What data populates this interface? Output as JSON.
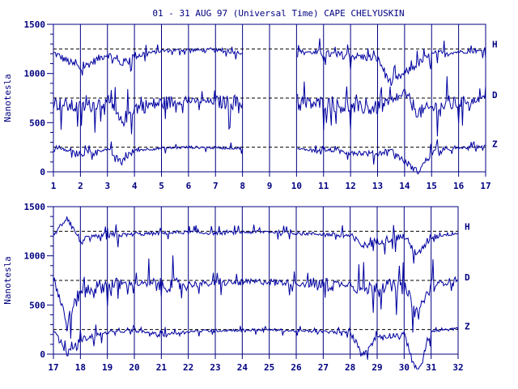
{
  "title": "01 - 31 AUG 97 (Universal Time) CAPE CHELYUSKIN",
  "colors": {
    "trace": "#0000a0",
    "axis": "#000080",
    "text": "#000080",
    "background": "#ffffff"
  },
  "chart_data": [
    {
      "type": "line",
      "title": "01 - 31 AUG 97 (Universal Time) CAPE CHELYUSKIN",
      "ylabel": "Nanotesla",
      "xlabel": "",
      "x_ticks": [
        "1",
        "2",
        "3",
        "4",
        "5",
        "6",
        "7",
        "8",
        "9",
        "10",
        "11",
        "12",
        "13",
        "14",
        "15",
        "16",
        "17"
      ],
      "xlim": [
        1,
        17
      ],
      "ylim": [
        0,
        1500
      ],
      "y_ticks": [
        "0",
        "500",
        "1000",
        "1500"
      ],
      "grid": true,
      "baselines": [
        1250,
        750,
        250
      ],
      "series": [
        {
          "name": "H",
          "baseline": 1250,
          "x": [
            1,
            2,
            3,
            3.5,
            4,
            5,
            6,
            7,
            8,
            9,
            10,
            11,
            12,
            13,
            13.5,
            14,
            14.5,
            15,
            16,
            17
          ],
          "values": [
            1210,
            1050,
            1200,
            1100,
            1180,
            1230,
            1240,
            1235,
            1210,
            null,
            1230,
            1200,
            1180,
            1150,
            900,
            1000,
            1100,
            1190,
            1220,
            1230
          ]
        },
        {
          "name": "D",
          "baseline": 750,
          "x": [
            1,
            2,
            3,
            3.5,
            4,
            5,
            6,
            7,
            8,
            9,
            10,
            11,
            12,
            13,
            13.5,
            14,
            14.5,
            15,
            16,
            17
          ],
          "values": [
            700,
            650,
            720,
            500,
            650,
            700,
            720,
            710,
            700,
            null,
            680,
            700,
            650,
            650,
            700,
            800,
            600,
            650,
            700,
            750
          ]
        },
        {
          "name": "Z",
          "baseline": 250,
          "x": [
            1,
            2,
            3,
            3.5,
            4,
            5,
            6,
            7,
            8,
            9,
            10,
            11,
            12,
            13,
            13.5,
            14,
            14.5,
            15,
            16,
            17
          ],
          "values": [
            250,
            180,
            230,
            100,
            220,
            240,
            250,
            245,
            240,
            null,
            230,
            220,
            200,
            180,
            230,
            100,
            0,
            200,
            240,
            260
          ]
        }
      ]
    },
    {
      "type": "line",
      "ylabel": "Nanotesla",
      "xlabel": "",
      "x_ticks": [
        "17",
        "18",
        "19",
        "20",
        "21",
        "22",
        "23",
        "24",
        "25",
        "26",
        "27",
        "28",
        "29",
        "30",
        "31",
        "32"
      ],
      "xlim": [
        17,
        32
      ],
      "ylim": [
        0,
        1500
      ],
      "y_ticks": [
        "0",
        "500",
        "1000",
        "1500"
      ],
      "grid": true,
      "baselines": [
        1250,
        750,
        250
      ],
      "series": [
        {
          "name": "H",
          "baseline": 1250,
          "x": [
            17,
            17.5,
            18,
            19,
            20,
            21,
            22,
            23,
            24,
            25,
            26,
            27,
            28,
            28.5,
            29,
            30,
            30.5,
            31,
            32
          ],
          "values": [
            1200,
            1400,
            1150,
            1200,
            1220,
            1230,
            1240,
            1230,
            1240,
            1245,
            1230,
            1220,
            1200,
            1100,
            1150,
            1200,
            1000,
            1200,
            1230
          ]
        },
        {
          "name": "D",
          "baseline": 750,
          "x": [
            17,
            17.5,
            18,
            19,
            20,
            21,
            22,
            23,
            24,
            25,
            26,
            27,
            28,
            28.5,
            29,
            30,
            30.5,
            31,
            32
          ],
          "values": [
            800,
            300,
            650,
            700,
            720,
            700,
            710,
            720,
            730,
            740,
            720,
            700,
            720,
            650,
            700,
            680,
            400,
            700,
            760
          ]
        },
        {
          "name": "Z",
          "baseline": 250,
          "x": [
            17,
            17.5,
            18,
            19,
            20,
            21,
            22,
            23,
            24,
            25,
            26,
            27,
            28,
            28.5,
            29,
            30,
            30.5,
            31,
            32
          ],
          "values": [
            250,
            0,
            150,
            220,
            240,
            200,
            230,
            240,
            245,
            250,
            235,
            230,
            220,
            0,
            180,
            200,
            -200,
            230,
            260
          ]
        }
      ]
    }
  ]
}
